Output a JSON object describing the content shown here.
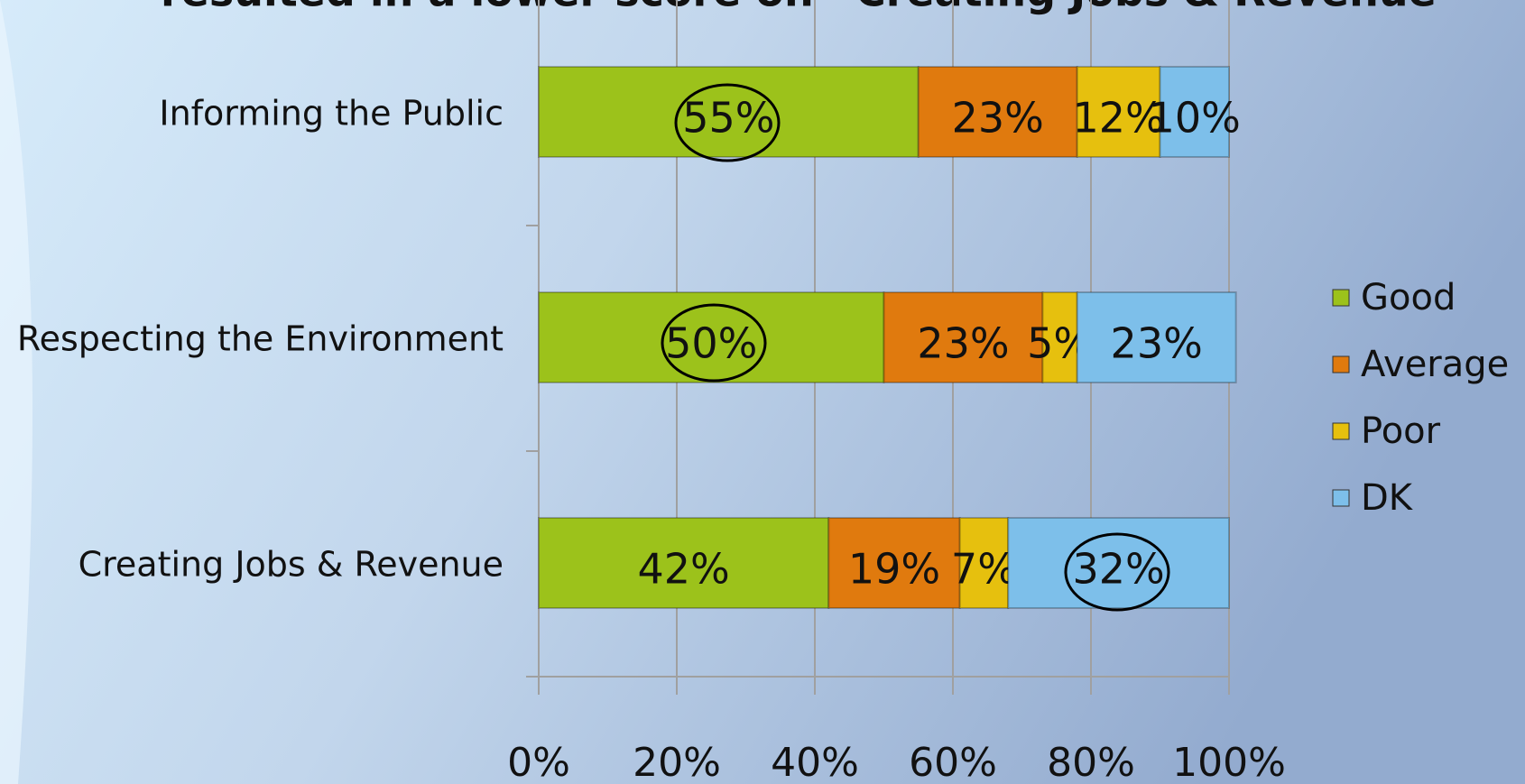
{
  "chart_data": {
    "type": "bar",
    "orientation": "horizontal",
    "stacked": true,
    "title": "resulted in a lower score on “Creating Jobs & Revenue”",
    "categories": [
      "Informing the Public",
      "Respecting the Environment",
      "Creating Jobs & Revenue"
    ],
    "series": [
      {
        "name": "Good",
        "color": "#9cc21b",
        "values": [
          55,
          50,
          42
        ],
        "value_labels": [
          "55%",
          "50%",
          "42%"
        ]
      },
      {
        "name": "Average",
        "color": "#e07a0e",
        "values": [
          23,
          23,
          19
        ],
        "value_labels": [
          "23%",
          "23%",
          "19%"
        ]
      },
      {
        "name": "Poor",
        "color": "#e6c00e",
        "values": [
          12,
          5,
          7
        ],
        "value_labels": [
          "12%",
          "5%",
          "7%"
        ]
      },
      {
        "name": "DK",
        "color": "#7dbfea",
        "values": [
          10,
          23,
          32
        ],
        "value_labels": [
          "10%",
          "23%",
          "32%"
        ]
      }
    ],
    "xlim": [
      0,
      100
    ],
    "xticks": [
      {
        "value": 0,
        "label": "0%"
      },
      {
        "value": 20,
        "label": "20%"
      },
      {
        "value": 40,
        "label": "40%"
      },
      {
        "value": 60,
        "label": "60%"
      },
      {
        "value": 80,
        "label": "80%"
      },
      {
        "value": 100,
        "label": "100%"
      }
    ],
    "grid": true,
    "legend": "right"
  }
}
